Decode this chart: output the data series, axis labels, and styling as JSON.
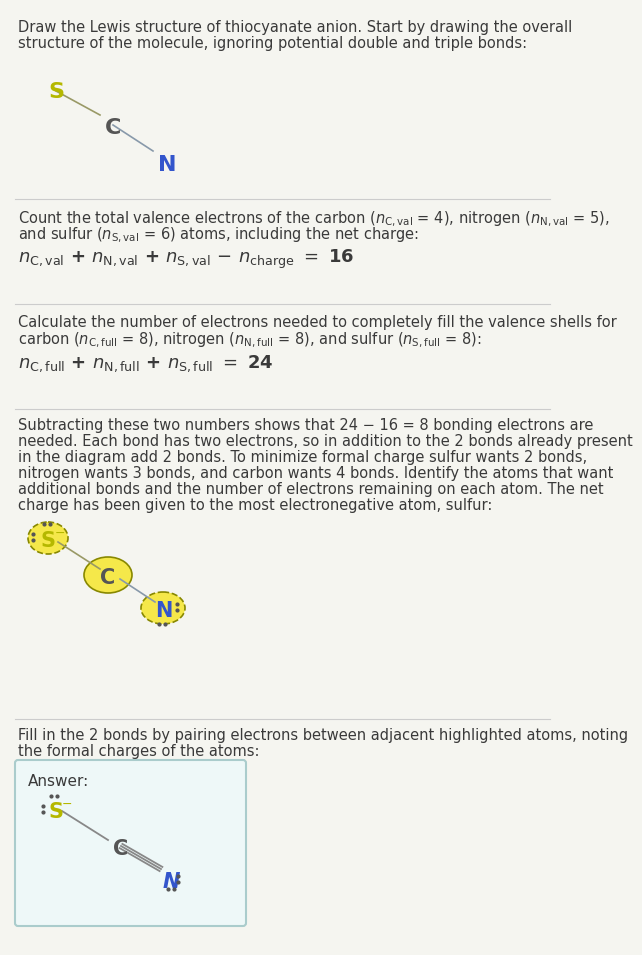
{
  "bg_color": "#f5f5f0",
  "text_color": "#3a3a3a",
  "title_text": "Draw the Lewis structure of thiocyanate anion. Start by drawing the overall\nstructure of the molecule, ignoring potential double and triple bonds:",
  "section1_text": "Count the total valence electrons of the carbon ($n_{\\mathrm{C,val}}$ = 4), nitrogen ($n_{\\mathrm{N,val}}$ = 5),\nand sulfur ($n_{\\mathrm{S,val}}$ = 6) atoms, including the net charge:",
  "section1_eq": "$n_{\\mathrm{C,val}}$ + $n_{\\mathrm{N,val}}$ + $n_{\\mathrm{S,val}}$ − $n_{\\mathrm{charge}}$ = 16",
  "section2_text": "Calculate the number of electrons needed to completely fill the valence shells for\ncarbon ($n_{\\mathrm{C,full}}$ = 8), nitrogen ($n_{\\mathrm{N,full}}$ = 8), and sulfur ($n_{\\mathrm{S,full}}$ = 8):",
  "section2_eq": "$n_{\\mathrm{C,full}}$ + $n_{\\mathrm{N,full}}$ + $n_{\\mathrm{S,full}}$ = 24",
  "section3_text": "Subtracting these two numbers shows that 24 − 16 = 8 bonding electrons are\nneeded. Each bond has two electrons, so in addition to the 2 bonds already present\nin the diagram add 2 bonds. To minimize formal charge sulfur wants 2 bonds,\nnitrogen wants 3 bonds, and carbon wants 4 bonds. Identify the atoms that want\nadditional bonds and the number of electrons remaining on each atom. The net\ncharge has been given to the most electronegative atom, sulfur:",
  "section4_text": "Fill in the 2 bonds by pairing electrons between adjacent highlighted atoms, noting\nthe formal charges of the atoms:",
  "answer_label": "Answer:",
  "S_color": "#b5b800",
  "C_color": "#555555",
  "N_color": "#3355cc",
  "highlight_color": "#f5e84a",
  "highlight_border": "#888800",
  "answer_box_color": "#e8f4f8",
  "answer_box_border": "#aacccc"
}
